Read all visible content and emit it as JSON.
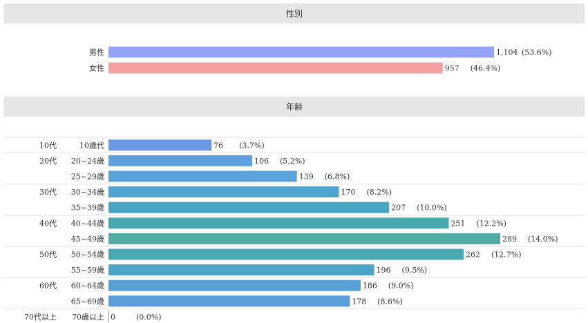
{
  "headers": {
    "gender": "性別",
    "age": "年齢"
  },
  "chart_data": [
    {
      "type": "bar",
      "orientation": "horizontal",
      "categories": [
        "男性",
        "女性"
      ],
      "values": [
        1104,
        957
      ],
      "value_labels": [
        "1,104",
        "957"
      ],
      "percent_labels": [
        "(53.6%)",
        "(46.4%)"
      ],
      "colors": [
        "#96a3f5",
        "#f2a0a0"
      ]
    },
    {
      "type": "bar",
      "orientation": "horizontal",
      "groups": [
        {
          "label": "10代",
          "rows": 1
        },
        {
          "label": "20代",
          "rows": 2
        },
        {
          "label": "30代",
          "rows": 2
        },
        {
          "label": "40代",
          "rows": 2
        },
        {
          "label": "50代",
          "rows": 2
        },
        {
          "label": "60代",
          "rows": 2
        },
        {
          "label": "70代以上",
          "rows": 1
        }
      ],
      "categories": [
        "10歳代",
        "20~24歳",
        "25~29歳",
        "30~34歳",
        "35~39歳",
        "40~44歳",
        "45~49歳",
        "50~54歳",
        "55~59歳",
        "60~64歳",
        "65~69歳",
        "70歳以上"
      ],
      "values": [
        76,
        106,
        139,
        170,
        207,
        251,
        289,
        262,
        196,
        186,
        178,
        0
      ],
      "value_labels": [
        "76",
        "106",
        "139",
        "170",
        "207",
        "251",
        "289",
        "262",
        "196",
        "186",
        "178",
        "0"
      ],
      "percent_labels": [
        "(3.7%)",
        "(5.2%)",
        "(6.8%)",
        "(8.2%)",
        "(10.0%)",
        "(12.2%)",
        "(14.0%)",
        "(12.7%)",
        "(9.5%)",
        "(9.0%)",
        "(8.6%)",
        "(0.0%)"
      ],
      "colors": [
        "#6a98e6",
        "#5e9fde",
        "#5aa3da",
        "#4fa3cf",
        "#4aa5c4",
        "#47a8ae",
        "#52aea4",
        "#48a8b4",
        "#4ca4c6",
        "#57a0d6",
        "#5a9fdb",
        "#6a98e6"
      ]
    }
  ]
}
